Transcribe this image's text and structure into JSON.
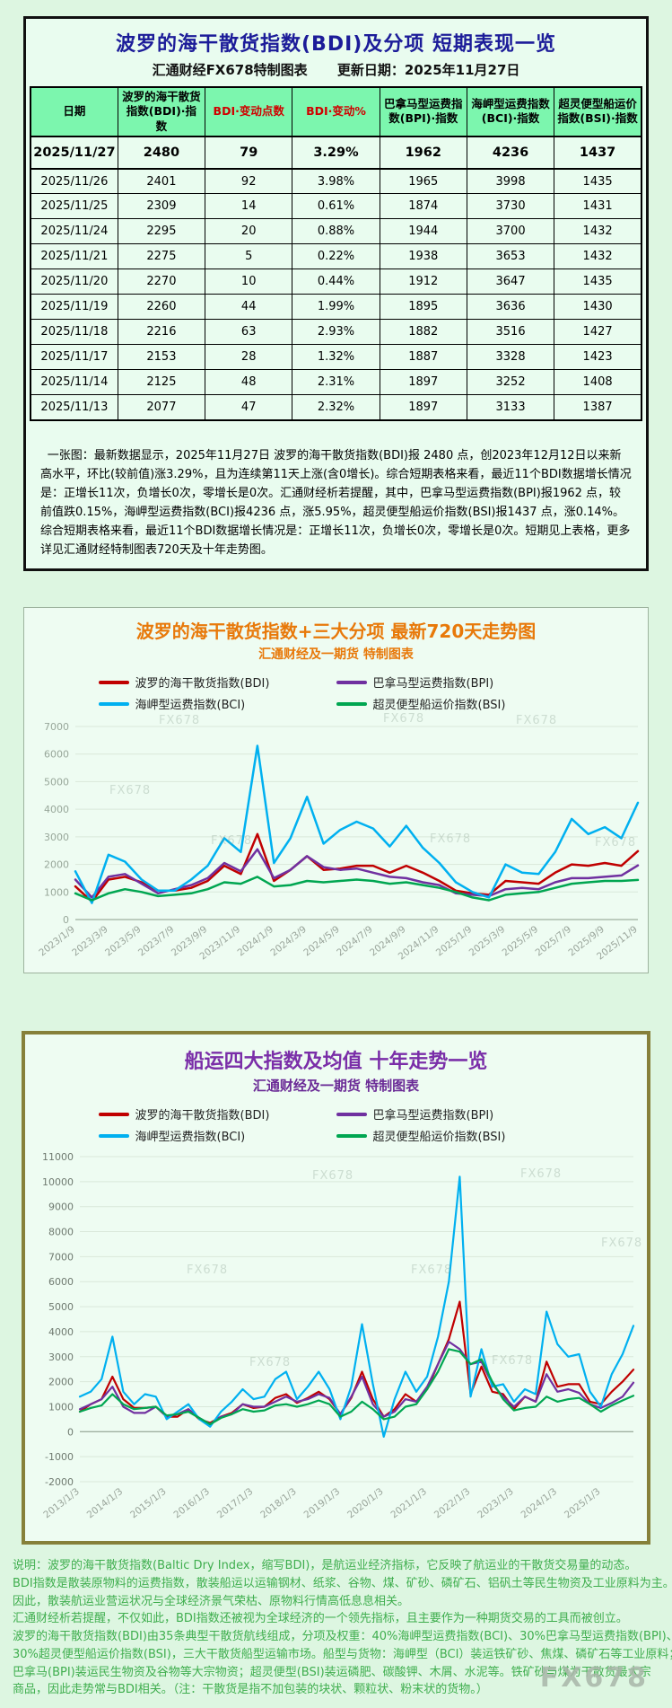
{
  "page": {
    "watermark": "FX678"
  },
  "colors": {
    "title_navy": "#1c1c99",
    "chart1_orange": "#e8790a",
    "chart2_purple": "#7a2ea8",
    "table_header_green": "#7cf6ae",
    "description_green": "#3fae4e",
    "bdi_red": "#c00000",
    "bpi_purple": "#7030a0",
    "bci_blue": "#00b0f0",
    "bsi_green": "#00a651"
  },
  "table_section": {
    "title": "波罗的海干散货指数(BDI)及分项 短期表现一览",
    "source_label": "汇通财经FX678特制图表",
    "update_label": "更新日期：2025年11月27日",
    "columns": [
      "日期",
      "波罗的海干散货指数(BDI)·指数",
      "BDI·变动点数",
      "BDI·变动%",
      "巴拿马型运费指数(BPI)·指数",
      "海岬型运费指数(BCI)·指数",
      "超灵便型船运价指数(BSI)·指数"
    ],
    "red_columns": [
      2,
      3
    ],
    "rows": [
      [
        "2025/11/27",
        "2480",
        "79",
        "3.29%",
        "1962",
        "4236",
        "1437"
      ],
      [
        "2025/11/26",
        "2401",
        "92",
        "3.98%",
        "1965",
        "3998",
        "1435"
      ],
      [
        "2025/11/25",
        "2309",
        "14",
        "0.61%",
        "1874",
        "3730",
        "1431"
      ],
      [
        "2025/11/24",
        "2295",
        "20",
        "0.88%",
        "1944",
        "3700",
        "1432"
      ],
      [
        "2025/11/21",
        "2275",
        "5",
        "0.22%",
        "1938",
        "3653",
        "1432"
      ],
      [
        "2025/11/20",
        "2270",
        "10",
        "0.44%",
        "1912",
        "3647",
        "1435"
      ],
      [
        "2025/11/19",
        "2260",
        "44",
        "1.99%",
        "1895",
        "3636",
        "1430"
      ],
      [
        "2025/11/18",
        "2216",
        "63",
        "2.93%",
        "1882",
        "3516",
        "1427"
      ],
      [
        "2025/11/17",
        "2153",
        "28",
        "1.32%",
        "1887",
        "3328",
        "1423"
      ],
      [
        "2025/11/14",
        "2125",
        "48",
        "2.31%",
        "1897",
        "3252",
        "1408"
      ],
      [
        "2025/11/13",
        "2077",
        "47",
        "2.32%",
        "1897",
        "3133",
        "1387"
      ]
    ],
    "note": "一张图：最新数据显示，2025年11月27日 波罗的海干散货指数(BDI)报 2480 点，创2023年12月12日以来新高水平，环比(较前值)涨3.29%，且为连续第11天上涨(含0增长)。综合短期表格来看，最近11个BDI数据增长情况是：正增长11次，负增长0次，零增长是0次。汇通财经析若提醒，其中，巴拿马型运费指数(BPI)报1962 点，较前值跌0.15%，海岬型运费指数(BCI)报4236 点，涨5.95%，超灵便型船运价指数(BSI)报1437 点，涨0.14%。综合短期表格来看，最近11个BDI数据增长情况是：正增长11次，负增长0次，零增长是0次。短期见上表格，更多详见汇通财经特制图表720天及十年走势图。"
  },
  "chart_data": [
    {
      "id": "chart720",
      "type": "line",
      "title": "波罗的海干散货指数+三大分项  最新720天走势图",
      "subtitle": "汇通财经及一期货 特制图表",
      "ylim": [
        0,
        7000
      ],
      "ytick_step": 1000,
      "grid": "horizontal",
      "legend_position": "top",
      "line_width": 2.5,
      "x_labels": [
        "2023/1/9",
        "2023/3/9",
        "2023/5/9",
        "2023/7/9",
        "2023/9/9",
        "2023/11/9",
        "2024/1/9",
        "2024/3/9",
        "2024/5/9",
        "2024/7/9",
        "2024/9/9",
        "2024/11/9",
        "2025/1/9",
        "2025/3/9",
        "2025/5/9",
        "2025/7/9",
        "2025/9/9",
        "2025/11/9"
      ],
      "x_label_step": 2,
      "series": [
        {
          "key": "BDI",
          "name": "波罗的海干散货指数(BDI)",
          "color": "#c00000",
          "values": [
            1200,
            650,
            1450,
            1550,
            1350,
            1050,
            1050,
            1150,
            1400,
            1950,
            1650,
            3100,
            1400,
            1800,
            2300,
            1800,
            1850,
            1950,
            1950,
            1700,
            1950,
            1700,
            1400,
            1050,
            950,
            900,
            1400,
            1350,
            1300,
            1700,
            2000,
            1950,
            2050,
            1950,
            2480
          ]
        },
        {
          "key": "BPI",
          "name": "巴拿马型运费指数(BPI)",
          "color": "#7030a0",
          "values": [
            1450,
            800,
            1550,
            1650,
            1300,
            950,
            1100,
            1250,
            1500,
            2050,
            1750,
            2550,
            1500,
            1800,
            2300,
            1900,
            1800,
            1850,
            1700,
            1550,
            1500,
            1350,
            1250,
            950,
            900,
            850,
            1100,
            1150,
            1100,
            1350,
            1500,
            1500,
            1550,
            1600,
            1962
          ]
        },
        {
          "key": "BCI",
          "name": "海岬型运费指数(BCI)",
          "color": "#00b0f0",
          "values": [
            1750,
            600,
            2350,
            2100,
            1450,
            1050,
            1050,
            1450,
            1950,
            2950,
            2450,
            6300,
            2050,
            2950,
            4450,
            2750,
            3250,
            3550,
            3300,
            2650,
            3400,
            2600,
            2050,
            1350,
            1000,
            800,
            2000,
            1700,
            1650,
            2450,
            3650,
            3100,
            3350,
            2950,
            4236
          ]
        },
        {
          "key": "BSI",
          "name": "超灵便型船运价指数(BSI)",
          "color": "#00a651",
          "values": [
            950,
            700,
            950,
            1100,
            1000,
            850,
            900,
            950,
            1100,
            1350,
            1300,
            1550,
            1200,
            1250,
            1400,
            1350,
            1400,
            1450,
            1400,
            1300,
            1350,
            1250,
            1150,
            1000,
            800,
            700,
            900,
            950,
            1000,
            1150,
            1300,
            1350,
            1400,
            1400,
            1437
          ]
        }
      ]
    },
    {
      "id": "chart10y",
      "type": "line",
      "title": "船运四大指数及均值 十年走势一览",
      "subtitle": "汇通财经及一期货 特制图表",
      "ylim": [
        -2000,
        11000
      ],
      "ytick_step": 1000,
      "grid": "horizontal",
      "legend_position": "top",
      "line_width": 2.2,
      "x_labels": [
        "2013/1/3",
        "2014/1/3",
        "2015/1/3",
        "2016/1/3",
        "2017/1/3",
        "2018/1/3",
        "2019/1/3",
        "2020/1/3",
        "2021/1/3",
        "2022/1/3",
        "2023/1/3",
        "2024/1/3",
        "2025/1/3"
      ],
      "x_label_step": 4,
      "series": [
        {
          "key": "BDI",
          "name": "波罗的海干散货指数(BDI)",
          "color": "#c00000",
          "values": [
            800,
            1100,
            1300,
            2200,
            1300,
            950,
            950,
            1000,
            600,
            600,
            900,
            500,
            350,
            600,
            750,
            1100,
            950,
            1000,
            1350,
            1500,
            1150,
            1350,
            1600,
            1300,
            700,
            1350,
            2400,
            1300,
            600,
            900,
            1500,
            1200,
            1700,
            2700,
            3700,
            5200,
            1500,
            2600,
            1600,
            1500,
            900,
            1400,
            1200,
            2800,
            1800,
            1900,
            1900,
            1200,
            1100,
            1600,
            2000,
            2480
          ]
        },
        {
          "key": "BPI",
          "name": "巴拿马型运费指数(BPI)",
          "color": "#7030a0",
          "values": [
            900,
            1100,
            1300,
            1800,
            1000,
            750,
            750,
            1000,
            600,
            700,
            900,
            550,
            300,
            600,
            700,
            1100,
            1000,
            1000,
            1200,
            1400,
            1200,
            1300,
            1500,
            1350,
            700,
            1400,
            2200,
            1100,
            600,
            800,
            1300,
            1200,
            1800,
            2700,
            3600,
            3300,
            2700,
            2800,
            1900,
            1400,
            1000,
            1400,
            1200,
            2300,
            1600,
            1700,
            1550,
            1100,
            950,
            1150,
            1400,
            1962
          ]
        },
        {
          "key": "BCI",
          "name": "海岬型运费指数(BCI)",
          "color": "#00b0f0",
          "values": [
            1400,
            1600,
            2100,
            3800,
            1600,
            1100,
            1500,
            1400,
            500,
            800,
            1100,
            500,
            200,
            800,
            1200,
            1700,
            1300,
            1400,
            2100,
            2400,
            1300,
            1800,
            2400,
            1700,
            500,
            1800,
            4300,
            1900,
            -200,
            1300,
            2400,
            1600,
            2200,
            3800,
            6000,
            10200,
            1400,
            3300,
            1800,
            1900,
            1200,
            1700,
            1500,
            4800,
            3500,
            3000,
            3100,
            1600,
            1000,
            2300,
            3100,
            4236
          ]
        },
        {
          "key": "BSI",
          "name": "超灵便型船运价指数(BSI)",
          "color": "#00a651",
          "values": [
            800,
            950,
            1050,
            1500,
            1100,
            900,
            950,
            1000,
            650,
            700,
            800,
            550,
            300,
            550,
            700,
            900,
            800,
            850,
            1050,
            1100,
            1000,
            1100,
            1250,
            1100,
            600,
            800,
            1200,
            900,
            500,
            600,
            1000,
            1100,
            1700,
            2400,
            3300,
            3200,
            2700,
            2900,
            2000,
            1300,
            850,
            950,
            1000,
            1400,
            1200,
            1300,
            1350,
            1100,
            800,
            1050,
            1250,
            1437
          ]
        }
      ]
    }
  ],
  "description": {
    "lines": [
      "说明：波罗的海干散货指数(Baltic Dry Index，缩写BDI)，是航运业经济指标，它反映了航运业的干散货交易量的动态。",
      "BDI指数是散装原物料的运费指数，散装船运以运输钢材、纸浆、谷物、煤、矿砂、磷矿石、铝矾土等民生物资及工业原料为主。",
      "因此，散装航运业营运状况与全球经济景气荣枯、原物料行情高低息息相关。",
      "汇通财经析若提醒，不仅如此，BDI指数还被视为全球经济的一个领先指标，且主要作为一种期货交易的工具而被创立。",
      "波罗的海干散货指数(BDI)由35条典型干散货航线组成，分项及权重：40%海岬型运费指数(BCI)、30%巴拿马型运费指数(BPI)、",
      "30%超灵便型船运价指数(BSI)，三大干散货船型运输市场。船型与货物：海岬型（BCI）装运铁矿砂、焦煤、磷矿石等工业原料；",
      "巴拿马(BPI)装运民生物资及谷物等大宗物资；超灵便型(BSI)装运磷肥、碳酸钾、木屑、水泥等。铁矿砂与煤为干散货最大宗",
      "商品，因此走势常与BDI相关。（注：干散货是指不加包装的块状、颗粒状、粉末状的货物。）"
    ]
  }
}
